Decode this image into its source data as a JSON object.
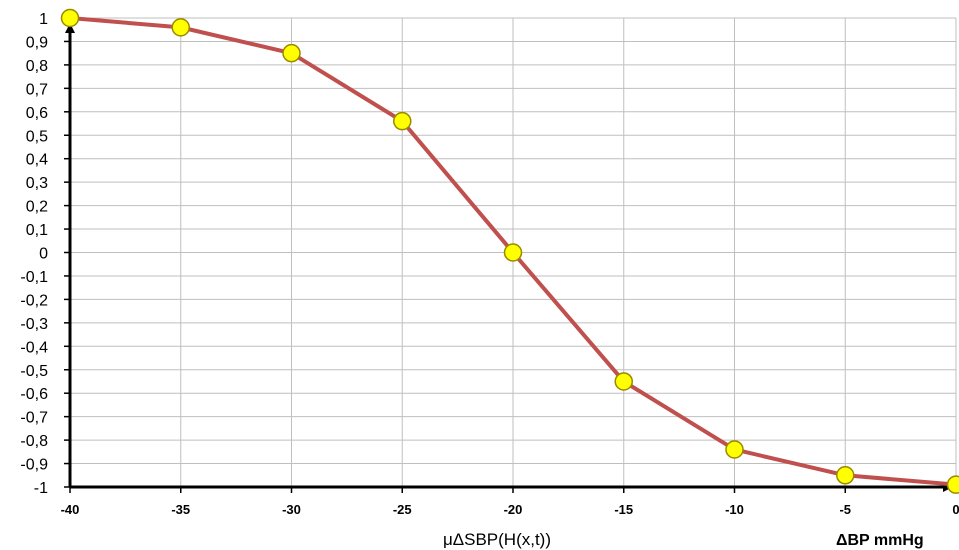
{
  "chart_data": {
    "type": "line",
    "title": "",
    "xlabel": "μΔSBP(H(x,t))",
    "unit_label": "ΔBP mmHg",
    "x": [
      -40,
      -35,
      -30,
      -25,
      -20,
      -15,
      -10,
      -5,
      0
    ],
    "series": [
      {
        "values": [
          1.0,
          0.96,
          0.85,
          0.56,
          0.0,
          -0.55,
          -0.84,
          -0.95,
          -0.99
        ]
      }
    ],
    "xticks": [
      "-40",
      "-35",
      "-30",
      "-25",
      "-20",
      "-15",
      "-10",
      "-5",
      "0"
    ],
    "yticks": [
      "1",
      "0,9",
      "0,8",
      "0,7",
      "0,6",
      "0,5",
      "0,4",
      "0,3",
      "0,2",
      "0,1",
      "0",
      "-0,1",
      "-0,2",
      "-0,3",
      "-0,4",
      "-0,5",
      "-0,6",
      "-0,7",
      "-0,8",
      "-0,9",
      "-1"
    ],
    "xlim": [
      -40,
      0
    ],
    "ylim": [
      -1,
      1
    ],
    "grid": true,
    "legend": "none",
    "colors": {
      "line": "#c0504d",
      "marker_fill": "#ffff00",
      "marker_stroke": "#9a8a00",
      "grid": "#bfbfbf",
      "axis": "#000000"
    }
  }
}
